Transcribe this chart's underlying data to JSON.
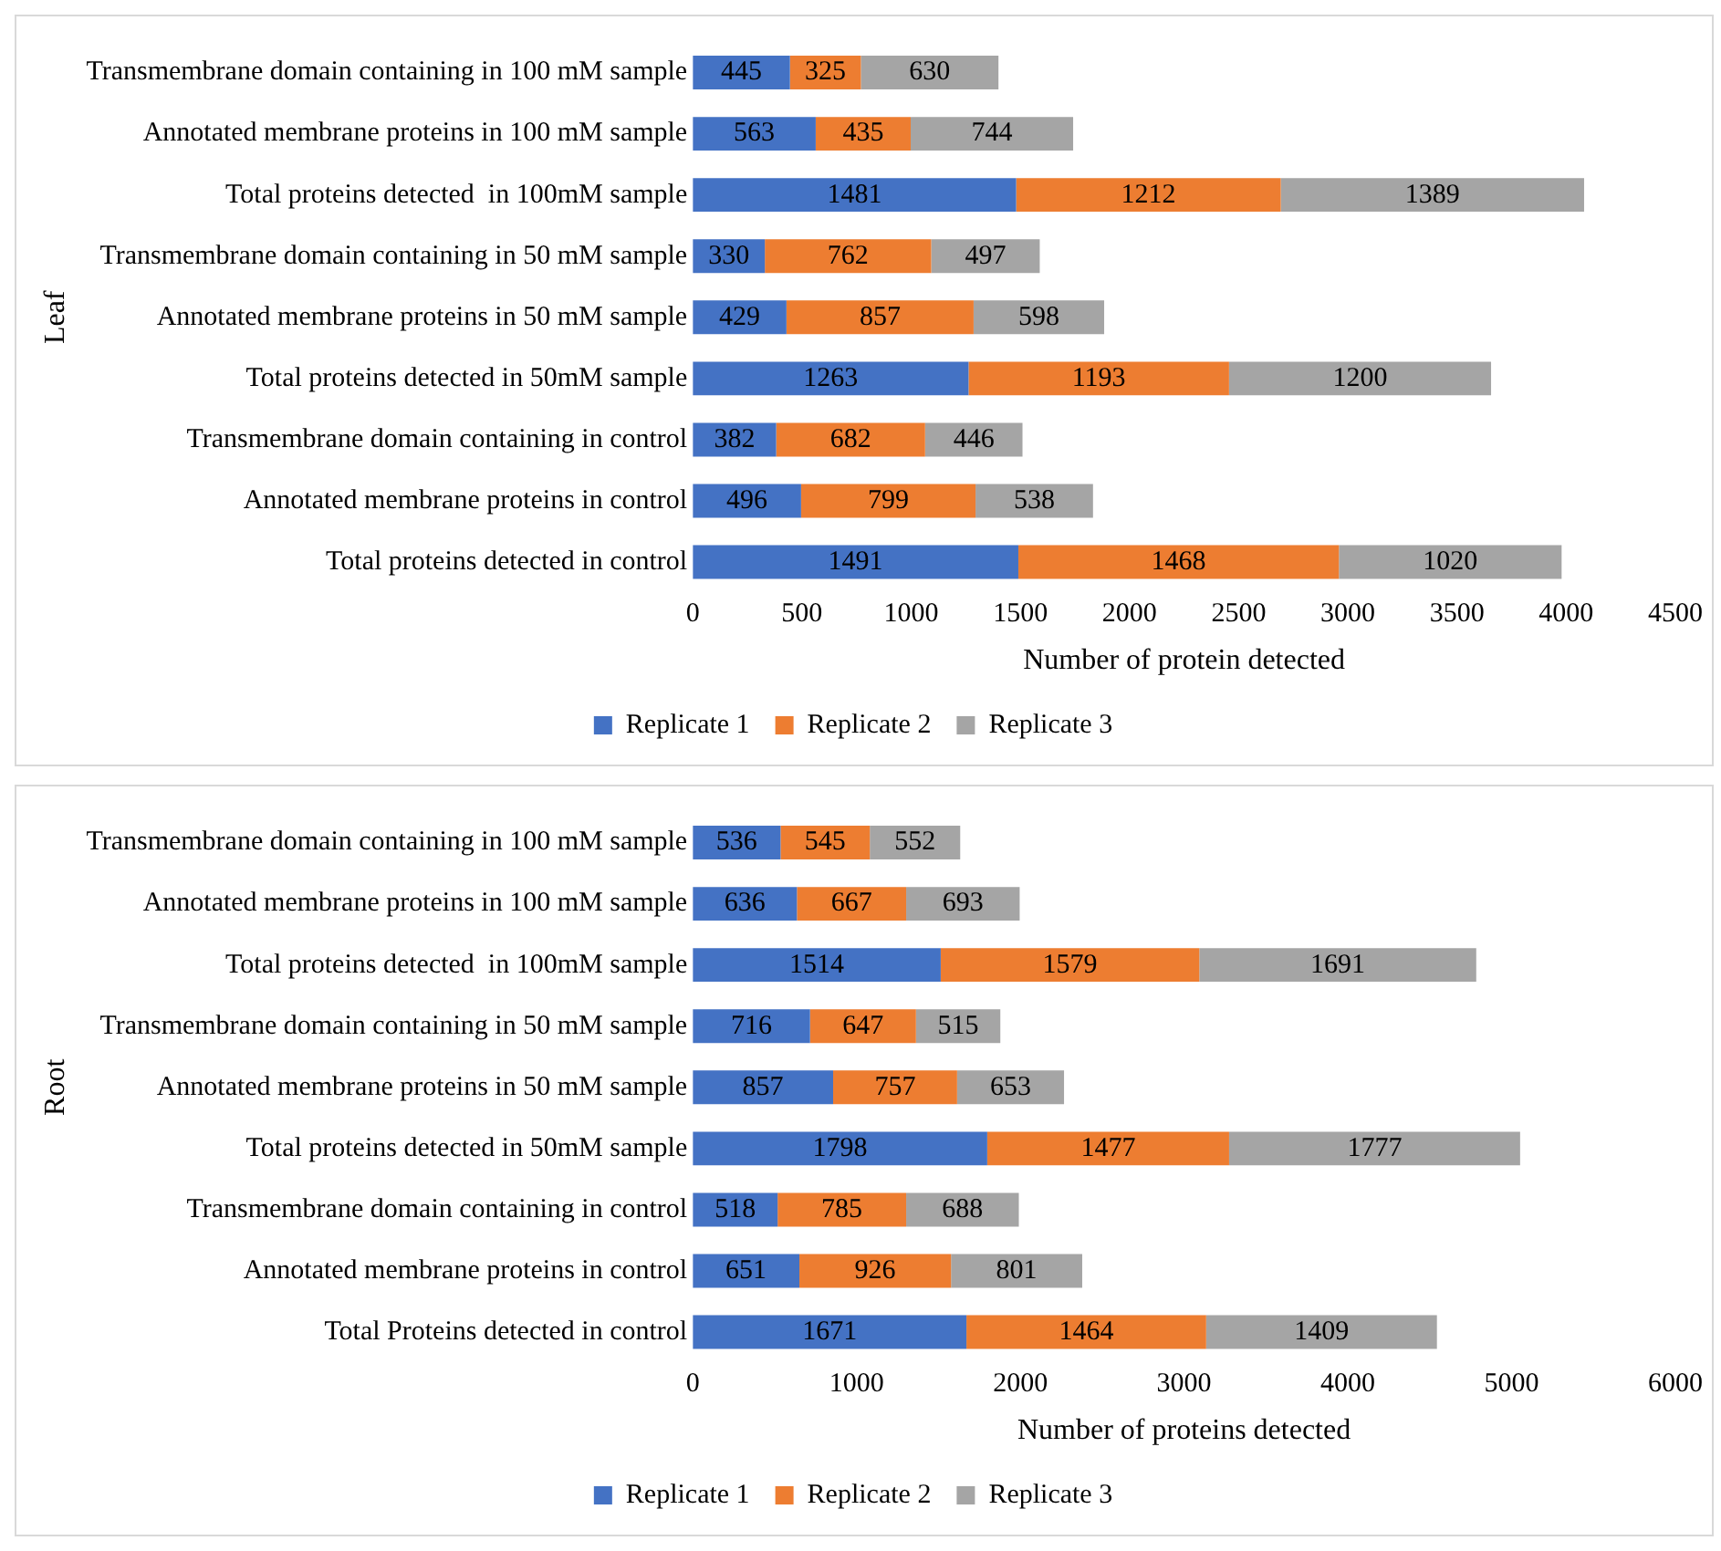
{
  "chart_data": [
    {
      "type": "bar",
      "orientation": "horizontal",
      "stacked": true,
      "ylabel": "Leaf",
      "xlabel": "Number of protein detected",
      "categories": [
        "Transmembrane domain containing in 100 mM sample",
        "Annotated membrane proteins in 100 mM sample",
        "Total proteins detected  in 100mM sample",
        "Transmembrane domain containing in 50 mM sample",
        "Annotated membrane proteins in 50 mM sample",
        "Total proteins detected in 50mM sample",
        "Transmembrane domain containing in control",
        "Annotated membrane proteins in control",
        "Total proteins detected in control"
      ],
      "series": [
        {
          "name": "Replicate 1",
          "color": "#4472c4",
          "values": [
            445,
            563,
            1481,
            330,
            429,
            1263,
            382,
            496,
            1491
          ]
        },
        {
          "name": "Replicate 2",
          "color": "#ed7d31",
          "values": [
            325,
            435,
            1212,
            762,
            857,
            1193,
            682,
            799,
            1468
          ]
        },
        {
          "name": "Replicate 3",
          "color": "#a5a5a5",
          "values": [
            630,
            744,
            1389,
            497,
            598,
            1200,
            446,
            538,
            1020
          ]
        }
      ],
      "xlim": [
        0,
        4500
      ],
      "xticks": [
        0,
        500,
        1000,
        1500,
        2000,
        2500,
        3000,
        3500,
        4000,
        4500
      ],
      "grid": false,
      "legend": "bottom",
      "data_labels": true
    },
    {
      "type": "bar",
      "orientation": "horizontal",
      "stacked": true,
      "ylabel": "Root",
      "xlabel": "Number of proteins detected",
      "categories": [
        "Transmembrane domain containing in 100 mM sample",
        "Annotated membrane proteins in 100 mM sample",
        "Total proteins detected  in 100mM sample",
        "Transmembrane domain containing in 50 mM sample",
        "Annotated membrane proteins in 50 mM sample",
        "Total proteins detected in 50mM sample",
        "Transmembrane domain containing in control",
        "Annotated membrane proteins in control",
        "Total Proteins detected in control"
      ],
      "series": [
        {
          "name": "Replicate 1",
          "color": "#4472c4",
          "values": [
            536,
            636,
            1514,
            716,
            857,
            1798,
            518,
            651,
            1671
          ]
        },
        {
          "name": "Replicate 2",
          "color": "#ed7d31",
          "values": [
            545,
            667,
            1579,
            647,
            757,
            1477,
            785,
            926,
            1464
          ]
        },
        {
          "name": "Replicate 3",
          "color": "#a5a5a5",
          "values": [
            552,
            693,
            1691,
            515,
            653,
            1777,
            688,
            801,
            1409
          ]
        }
      ],
      "xlim": [
        0,
        6000
      ],
      "xticks": [
        0,
        1000,
        2000,
        3000,
        4000,
        5000,
        6000
      ],
      "grid": false,
      "legend": "bottom",
      "data_labels": true
    }
  ]
}
